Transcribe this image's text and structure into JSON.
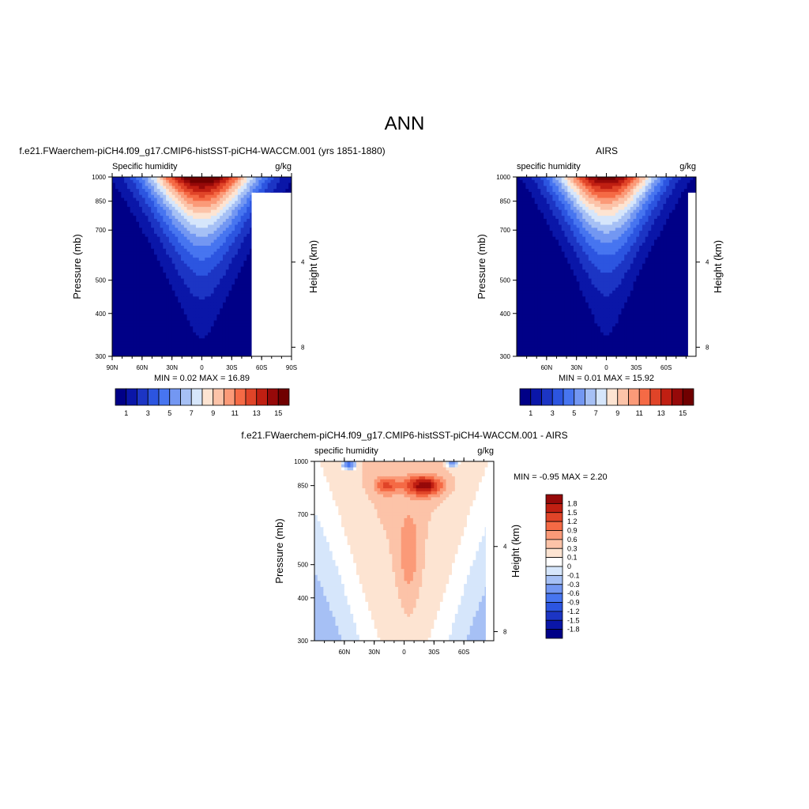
{
  "page_title": "ANN",
  "chart_data": [
    {
      "id": "model",
      "type": "filled-contour",
      "title": "f.e21.FWaerchem-piCH4.f09_g17.CMIP6-histSST-piCH4-WACCM.001 (yrs 1851-1880)",
      "left_label": "Specific humidity",
      "right_label": "g/kg",
      "ylabel": "Pressure (mb)",
      "ylabel_right": "Height (km)",
      "x_ticks": [
        "90N",
        "60N",
        "30N",
        "0",
        "30S",
        "60S",
        "90S"
      ],
      "x_tick_values": [
        -90,
        -60,
        -30,
        0,
        30,
        60,
        90
      ],
      "xlim": [
        -90,
        90
      ],
      "y_ticks": [
        300,
        400,
        500,
        700,
        850,
        1000
      ],
      "ylim": [
        1000,
        300
      ],
      "height_ticks": [
        "8",
        "4"
      ],
      "height_tick_values": [
        8,
        4
      ],
      "stats": "MIN =   0.02  MAX =  16.89",
      "field": {
        "peak_value": 16.89,
        "min_value": 0.02,
        "peak_lat": 0,
        "surface_width_deg": 55,
        "top_pressure": 390
      },
      "levels": [
        1,
        2,
        3,
        4,
        5,
        6,
        7,
        8,
        9,
        10,
        11,
        12,
        13,
        14,
        15
      ],
      "colorbar_labels": [
        "1",
        "3",
        "5",
        "7",
        "9",
        "11",
        "13",
        "15"
      ]
    },
    {
      "id": "obs",
      "type": "filled-contour",
      "title": "AIRS",
      "left_label": "specific humidity",
      "right_label": "g/kg",
      "ylabel": "Pressure (mb)",
      "ylabel_right": "Height (km)",
      "x_ticks": [
        "60N",
        "30N",
        "0",
        "30S",
        "60S"
      ],
      "x_tick_values": [
        -60,
        -30,
        0,
        30,
        60
      ],
      "xlim": [
        -90,
        90
      ],
      "y_ticks": [
        300,
        400,
        500,
        700,
        850,
        1000
      ],
      "ylim": [
        1000,
        300
      ],
      "height_ticks": [
        "8",
        "4"
      ],
      "height_tick_values": [
        8,
        4
      ],
      "stats": "MIN =   0.01  MAX =  15.92",
      "field": {
        "peak_value": 15.92,
        "min_value": 0.01,
        "peak_lat": 0,
        "surface_width_deg": 52,
        "top_pressure": 400
      },
      "levels": [
        1,
        2,
        3,
        4,
        5,
        6,
        7,
        8,
        9,
        10,
        11,
        12,
        13,
        14,
        15
      ],
      "colorbar_labels": [
        "1",
        "3",
        "5",
        "7",
        "9",
        "11",
        "13",
        "15"
      ]
    },
    {
      "id": "diff",
      "type": "filled-contour",
      "title": "f.e21.FWaerchem-piCH4.f09_g17.CMIP6-histSST-piCH4-WACCM.001 - AIRS",
      "left_label": "specific humidity",
      "right_label": "g/kg",
      "ylabel": "Pressure (mb)",
      "ylabel_right": "Height (km)",
      "x_ticks": [
        "60N",
        "30N",
        "0",
        "30S",
        "60S"
      ],
      "x_tick_values": [
        -60,
        -30,
        0,
        30,
        60
      ],
      "xlim": [
        -90,
        90
      ],
      "y_ticks": [
        300,
        400,
        500,
        700,
        850,
        1000
      ],
      "ylim": [
        1000,
        300
      ],
      "height_ticks": [
        "8",
        "4"
      ],
      "height_tick_values": [
        8,
        4
      ],
      "stats": "MIN = -0.95  MAX =   2.20",
      "field": {
        "peak_value": 2.2,
        "min_value": -0.95,
        "peak_lat": 20,
        "peak_pressure": 850
      },
      "levels": [
        -1.8,
        -1.5,
        -1.2,
        -0.9,
        -0.6,
        -0.3,
        -0.1,
        0,
        0.1,
        0.3,
        0.6,
        0.9,
        1.2,
        1.5,
        1.8
      ],
      "colorbar_labels": [
        "1.8",
        "1.5",
        "1.2",
        "0.9",
        "0.6",
        "0.3",
        "0.1",
        "0",
        "-0.1",
        "-0.3",
        "-0.6",
        "-0.9",
        "-1.2",
        "-1.5",
        "-1.8"
      ]
    }
  ],
  "colors": {
    "humidity_scale": [
      "#000087",
      "#0a16a8",
      "#1c35c4",
      "#2c55e0",
      "#4775f0",
      "#7397f2",
      "#a6c0f5",
      "#d6e6fb",
      "#fde4d2",
      "#fcc3a8",
      "#fb9a78",
      "#f56a45",
      "#e04428",
      "#c01f12",
      "#960909",
      "#700000"
    ],
    "difference_scale": [
      "#000087",
      "#0a16a8",
      "#1c35c4",
      "#2c55e0",
      "#4775f0",
      "#7397f2",
      "#a6c0f5",
      "#d6e6fb",
      "#ffffff",
      "#fde4d2",
      "#fcc3a8",
      "#fb9a78",
      "#f56a45",
      "#e04428",
      "#c01f12",
      "#960909"
    ],
    "missing": "#ffffff"
  }
}
